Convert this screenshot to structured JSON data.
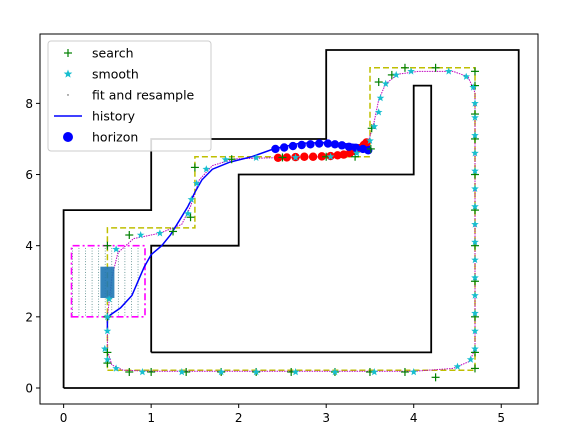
{
  "chart_data": {
    "type": "line",
    "title": "",
    "xlabel": "",
    "ylabel": "",
    "xlim": [
      -0.27,
      5.42
    ],
    "ylim": [
      -0.45,
      9.95
    ],
    "xticks": [
      0,
      1,
      2,
      3,
      4,
      5
    ],
    "yticks": [
      0,
      2,
      4,
      6,
      8
    ],
    "grid": false,
    "legend_position": "top-left",
    "legend": [
      {
        "label": "search",
        "marker": "+",
        "color": "#008000"
      },
      {
        "label": "smooth",
        "marker": "star",
        "color": "#17becf"
      },
      {
        "label": "fit and resample",
        "marker": "dot",
        "color": "#444444"
      },
      {
        "label": "history",
        "marker": "line",
        "color": "#0000ff"
      },
      {
        "label": "horizon",
        "marker": "circle",
        "color": "#0000ff"
      }
    ],
    "colors": {
      "walls": "#000000",
      "search_marker": "#008000",
      "search_path": "#bfbf00",
      "smooth_marker": "#17becf",
      "fit_path": "#bf00bf",
      "history": "#0000ff",
      "horizon": "#0000ff",
      "horizon_predicted": "#ff0000",
      "vehicle": "#1f77b4",
      "vehicle_outline": "#ff00ff"
    },
    "walls": [
      [
        [
          0,
          0
        ],
        [
          5.2,
          0
        ],
        [
          5.2,
          9.5
        ],
        [
          3,
          9.5
        ],
        [
          3,
          7
        ],
        [
          1,
          7
        ],
        [
          1,
          5
        ],
        [
          0,
          5
        ],
        [
          0,
          0
        ]
      ],
      [
        [
          1,
          1
        ],
        [
          4.2,
          1
        ],
        [
          4.2,
          8.5
        ],
        [
          4,
          8.5
        ],
        [
          4,
          6
        ],
        [
          2,
          6
        ],
        [
          2,
          4
        ],
        [
          1,
          4
        ],
        [
          1,
          1
        ]
      ]
    ],
    "search_path": [
      [
        0.5,
        0.5
      ],
      [
        4.7,
        0.5
      ],
      [
        4.7,
        9
      ],
      [
        3.5,
        9
      ],
      [
        3.5,
        6.5
      ],
      [
        1.5,
        6.5
      ],
      [
        1.5,
        4.5
      ],
      [
        0.5,
        4.5
      ],
      [
        0.5,
        0.5
      ]
    ],
    "search_points": [
      [
        0.5,
        1
      ],
      [
        0.5,
        2
      ],
      [
        0.5,
        4
      ],
      [
        0.75,
        4.3
      ],
      [
        1.25,
        4.4
      ],
      [
        1.45,
        4.8
      ],
      [
        1.5,
        6.2
      ],
      [
        1.92,
        6.43
      ],
      [
        2.5,
        6.48
      ],
      [
        3.0,
        6.5
      ],
      [
        3.33,
        6.5
      ],
      [
        3.51,
        6.72
      ],
      [
        3.52,
        7.3
      ],
      [
        3.6,
        8.6
      ],
      [
        3.75,
        8.8
      ],
      [
        3.9,
        9
      ],
      [
        4.25,
        9
      ],
      [
        4.7,
        8.9
      ],
      [
        4.7,
        8.5
      ],
      [
        4.7,
        7.7
      ],
      [
        4.7,
        7
      ],
      [
        4.7,
        6
      ],
      [
        4.7,
        5
      ],
      [
        4.7,
        4
      ],
      [
        4.7,
        3
      ],
      [
        4.7,
        2
      ],
      [
        4.7,
        1
      ],
      [
        4.7,
        0.55
      ],
      [
        4.25,
        0.3
      ],
      [
        3.9,
        0.45
      ],
      [
        3.5,
        0.45
      ],
      [
        3.1,
        0.45
      ],
      [
        2.6,
        0.45
      ],
      [
        2.2,
        0.45
      ],
      [
        1.8,
        0.45
      ],
      [
        1.4,
        0.45
      ],
      [
        1.0,
        0.45
      ],
      [
        0.75,
        0.45
      ],
      [
        0.5,
        0.7
      ]
    ],
    "smooth_points": [
      [
        0.47,
        1.1
      ],
      [
        0.5,
        1.6
      ],
      [
        0.5,
        2.0
      ],
      [
        0.52,
        2.5
      ],
      [
        0.6,
        3.9
      ],
      [
        0.88,
        4.3
      ],
      [
        1.1,
        4.35
      ],
      [
        1.42,
        4.9
      ],
      [
        1.46,
        5.3
      ],
      [
        1.52,
        5.75
      ],
      [
        1.63,
        6.15
      ],
      [
        1.85,
        6.42
      ],
      [
        2.2,
        6.47
      ],
      [
        2.65,
        6.48
      ],
      [
        3.05,
        6.5
      ],
      [
        3.35,
        6.6
      ],
      [
        3.5,
        6.95
      ],
      [
        3.55,
        7.35
      ],
      [
        3.6,
        7.75
      ],
      [
        3.62,
        8.15
      ],
      [
        3.68,
        8.55
      ],
      [
        3.8,
        8.8
      ],
      [
        3.97,
        8.9
      ],
      [
        4.4,
        8.9
      ],
      [
        4.6,
        8.75
      ],
      [
        4.68,
        8.45
      ],
      [
        4.7,
        8.0
      ],
      [
        4.7,
        7.6
      ],
      [
        4.7,
        7.1
      ],
      [
        4.7,
        6.6
      ],
      [
        4.7,
        6.1
      ],
      [
        4.7,
        5.6
      ],
      [
        4.7,
        5.1
      ],
      [
        4.7,
        4.6
      ],
      [
        4.7,
        4.1
      ],
      [
        4.7,
        3.6
      ],
      [
        4.7,
        3.1
      ],
      [
        4.7,
        2.6
      ],
      [
        4.7,
        2.1
      ],
      [
        4.7,
        1.6
      ],
      [
        4.7,
        1.1
      ],
      [
        4.65,
        0.8
      ],
      [
        4.5,
        0.6
      ],
      [
        4.0,
        0.45
      ],
      [
        3.55,
        0.45
      ],
      [
        3.1,
        0.45
      ],
      [
        2.65,
        0.45
      ],
      [
        2.2,
        0.45
      ],
      [
        1.8,
        0.45
      ],
      [
        1.35,
        0.45
      ],
      [
        0.9,
        0.45
      ],
      [
        0.6,
        0.55
      ],
      [
        0.5,
        0.8
      ]
    ],
    "fit_path": [
      [
        0.5,
        1.05
      ],
      [
        0.5,
        2.0
      ],
      [
        0.55,
        3.1
      ],
      [
        0.62,
        3.8
      ],
      [
        0.8,
        4.2
      ],
      [
        1.1,
        4.35
      ],
      [
        1.35,
        4.6
      ],
      [
        1.45,
        5.1
      ],
      [
        1.55,
        5.85
      ],
      [
        1.7,
        6.25
      ],
      [
        1.95,
        6.44
      ],
      [
        2.5,
        6.48
      ],
      [
        3.1,
        6.5
      ],
      [
        3.35,
        6.6
      ],
      [
        3.48,
        6.9
      ],
      [
        3.55,
        7.5
      ],
      [
        3.6,
        8.1
      ],
      [
        3.68,
        8.55
      ],
      [
        3.82,
        8.82
      ],
      [
        4.05,
        8.9
      ],
      [
        4.45,
        8.9
      ],
      [
        4.62,
        8.75
      ],
      [
        4.7,
        8.3
      ],
      [
        4.7,
        7.0
      ],
      [
        4.7,
        5.0
      ],
      [
        4.7,
        3.0
      ],
      [
        4.7,
        1.1
      ],
      [
        4.64,
        0.75
      ],
      [
        4.45,
        0.55
      ],
      [
        4.0,
        0.47
      ],
      [
        3.0,
        0.47
      ],
      [
        2.0,
        0.47
      ],
      [
        1.0,
        0.47
      ],
      [
        0.68,
        0.5
      ],
      [
        0.55,
        0.65
      ],
      [
        0.5,
        1.05
      ]
    ],
    "history": [
      [
        0.5,
        1.6
      ],
      [
        0.5,
        1.9
      ],
      [
        0.53,
        2.05
      ],
      [
        0.65,
        2.25
      ],
      [
        0.78,
        2.6
      ],
      [
        0.85,
        3.0
      ],
      [
        0.92,
        3.4
      ],
      [
        1.0,
        3.75
      ],
      [
        1.12,
        4.0
      ],
      [
        1.22,
        4.3
      ],
      [
        1.32,
        4.7
      ],
      [
        1.42,
        5.1
      ],
      [
        1.5,
        5.5
      ],
      [
        1.58,
        5.85
      ],
      [
        1.7,
        6.15
      ],
      [
        1.9,
        6.35
      ],
      [
        2.15,
        6.5
      ],
      [
        2.4,
        6.72
      ],
      [
        2.7,
        6.88
      ],
      [
        3.0,
        6.9
      ],
      [
        3.3,
        6.85
      ],
      [
        3.5,
        6.8
      ]
    ],
    "horizon": [
      [
        2.42,
        6.72
      ],
      [
        2.52,
        6.76
      ],
      [
        2.62,
        6.8
      ],
      [
        2.72,
        6.83
      ],
      [
        2.82,
        6.85
      ],
      [
        2.92,
        6.87
      ],
      [
        3.02,
        6.87
      ],
      [
        3.1,
        6.85
      ],
      [
        3.18,
        6.82
      ],
      [
        3.26,
        6.78
      ],
      [
        3.34,
        6.75
      ],
      [
        3.42,
        6.72
      ],
      [
        3.48,
        6.68
      ]
    ],
    "horizon_predicted": [
      [
        2.45,
        6.47
      ],
      [
        2.55,
        6.48
      ],
      [
        2.65,
        6.49
      ],
      [
        2.75,
        6.5
      ],
      [
        2.85,
        6.5
      ],
      [
        2.95,
        6.51
      ],
      [
        3.05,
        6.52
      ],
      [
        3.13,
        6.54
      ],
      [
        3.2,
        6.56
      ],
      [
        3.27,
        6.6
      ],
      [
        3.33,
        6.66
      ],
      [
        3.38,
        6.74
      ],
      [
        3.43,
        6.83
      ],
      [
        3.46,
        6.9
      ]
    ],
    "vehicle": {
      "cx": 0.5,
      "cy": 2.97,
      "w": 0.16,
      "h": 0.88
    },
    "vehicle_envelope": [
      [
        0.09,
        2.0
      ],
      [
        0.93,
        2.0
      ],
      [
        0.93,
        4.0
      ],
      [
        0.09,
        4.0
      ]
    ]
  }
}
